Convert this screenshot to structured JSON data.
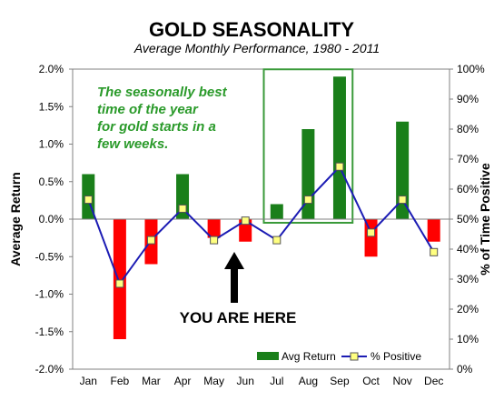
{
  "chart_data": {
    "type": "bar",
    "title": "GOLD SEASONALITY",
    "subtitle": "Average Monthly Performance, 1980 - 2011",
    "ylabel": "Average Return",
    "y2label": "% of Time Positive",
    "categories": [
      "Jan",
      "Feb",
      "Mar",
      "Apr",
      "May",
      "Jun",
      "Jul",
      "Aug",
      "Sep",
      "Oct",
      "Nov",
      "Dec"
    ],
    "ylim": [
      -2.0,
      2.0
    ],
    "y2lim": [
      0,
      100
    ],
    "yticks": [
      "2.0%",
      "1.5%",
      "1.0%",
      "0.5%",
      "0.0%",
      "-0.5%",
      "-1.0%",
      "-1.5%",
      "-2.0%"
    ],
    "y2ticks": [
      "100%",
      "90%",
      "80%",
      "70%",
      "60%",
      "50%",
      "40%",
      "30%",
      "20%",
      "10%",
      "0%"
    ],
    "series": [
      {
        "name": "Avg Return",
        "type": "bar",
        "values": [
          0.6,
          -1.6,
          -0.6,
          0.6,
          -0.25,
          -0.3,
          0.2,
          1.2,
          1.9,
          -0.5,
          1.3,
          -0.3
        ]
      },
      {
        "name": "% Positive",
        "type": "line",
        "axis": "right",
        "values": [
          56.5,
          28.5,
          43,
          53.5,
          43,
          49.5,
          43,
          56.5,
          67.5,
          45.5,
          56.5,
          39
        ]
      }
    ],
    "colors": {
      "positive": "#1a7f1a",
      "negative": "#ff0000",
      "line": "#1c1cb4",
      "marker": "#ffff80",
      "annotation": "#2a9a2a"
    },
    "annotations": {
      "callout": [
        "The seasonally best",
        "time of the year",
        "for gold starts in a",
        "few weeks."
      ],
      "pointer": "YOU ARE HERE"
    },
    "highlight_range": [
      "Jul",
      "Sep"
    ],
    "legend_position": "bottom-right",
    "grid": false
  }
}
